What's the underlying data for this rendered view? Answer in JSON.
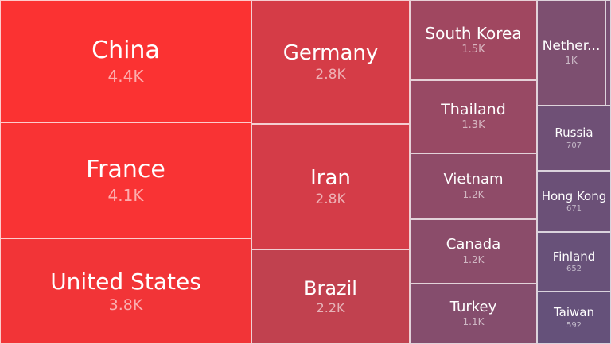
{
  "chart_data": {
    "type": "treemap",
    "items": [
      {
        "name": "China",
        "label": "4.4K",
        "value": 4400,
        "color": "#fb3232"
      },
      {
        "name": "France",
        "label": "4.1K",
        "value": 4100,
        "color": "#f93334"
      },
      {
        "name": "United States",
        "label": "3.8K",
        "value": 3800,
        "color": "#f23437"
      },
      {
        "name": "Germany",
        "label": "2.8K",
        "value": 2800,
        "color": "#d53c47"
      },
      {
        "name": "Iran",
        "label": "2.8K",
        "value": 2800,
        "color": "#d43c48"
      },
      {
        "name": "Brazil",
        "label": "2.2K",
        "value": 2200,
        "color": "#c1414f"
      },
      {
        "name": "South Korea",
        "label": "1.5K",
        "value": 1500,
        "color": "#a04760"
      },
      {
        "name": "Thailand",
        "label": "1.3K",
        "value": 1300,
        "color": "#984964"
      },
      {
        "name": "Vietnam",
        "label": "1.2K",
        "value": 1200,
        "color": "#8f4b68"
      },
      {
        "name": "Canada",
        "label": "1.2K",
        "value": 1200,
        "color": "#8b4c6a"
      },
      {
        "name": "Turkey",
        "label": "1.1K",
        "value": 1100,
        "color": "#854d6d"
      },
      {
        "name": "Nether...",
        "label": "1K",
        "value": 1000,
        "color": "#7d4f70"
      },
      {
        "name": "",
        "label": "",
        "value": 900,
        "color": "#784f73"
      },
      {
        "name": "Russia",
        "label": "707",
        "value": 707,
        "color": "#6f5076"
      },
      {
        "name": "Hong Kong",
        "label": "671",
        "value": 671,
        "color": "#6b5077"
      },
      {
        "name": "Finland",
        "label": "652",
        "value": 652,
        "color": "#685179"
      },
      {
        "name": "Taiwan",
        "label": "592",
        "value": 592,
        "color": "#65517a"
      }
    ]
  }
}
